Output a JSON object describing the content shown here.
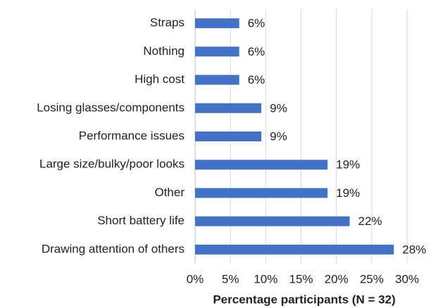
{
  "chart_data": {
    "type": "bar",
    "orientation": "horizontal",
    "xlabel": "Percentage participants (N = 32)",
    "categories": [
      "Straps",
      "Nothing",
      "High cost",
      "Losing glasses/components",
      "Performance issues",
      "Large size/bulky/poor looks",
      "Other",
      "Short battery life",
      "Drawing attention of others"
    ],
    "values": [
      6.25,
      6.25,
      6.25,
      9.38,
      9.38,
      18.75,
      18.75,
      21.88,
      28.13
    ],
    "value_labels": [
      "6%",
      "6%",
      "6%",
      "9%",
      "9%",
      "19%",
      "19%",
      "22%",
      "28%"
    ],
    "color": "#4472c4",
    "xlim": [
      0,
      30
    ],
    "xticks": [
      {
        "value": 0,
        "label": "0%"
      },
      {
        "value": 5,
        "label": "5%"
      },
      {
        "value": 10,
        "label": "10%"
      },
      {
        "value": 15,
        "label": "15%"
      },
      {
        "value": 20,
        "label": "20%"
      },
      {
        "value": 25,
        "label": "25%"
      },
      {
        "value": 30,
        "label": "30%"
      }
    ],
    "grid": true
  }
}
